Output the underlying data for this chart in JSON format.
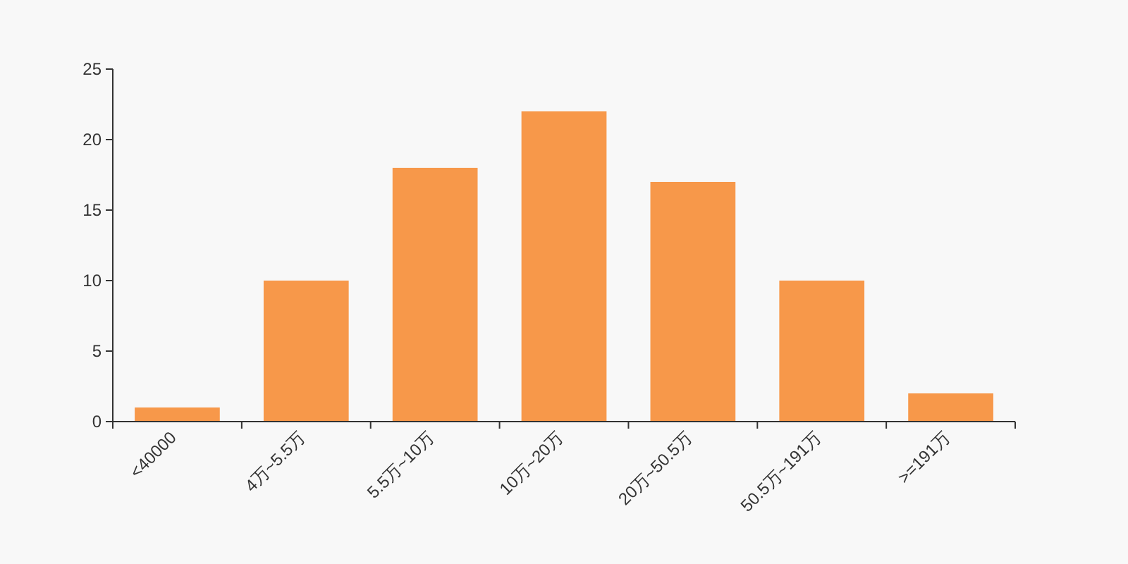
{
  "chart_data": {
    "type": "bar",
    "categories": [
      "<40000",
      "4万~5.5万",
      "5.5万~10万",
      "10万~20万",
      "20万~50.5万",
      "50.5万~191万",
      ">=191万"
    ],
    "values": [
      1,
      10,
      18,
      22,
      17,
      10,
      2
    ],
    "color": "#f7984a",
    "ylim": [
      0,
      25
    ],
    "yticks": [
      0,
      5,
      10,
      15,
      20,
      25
    ],
    "grid": false
  }
}
